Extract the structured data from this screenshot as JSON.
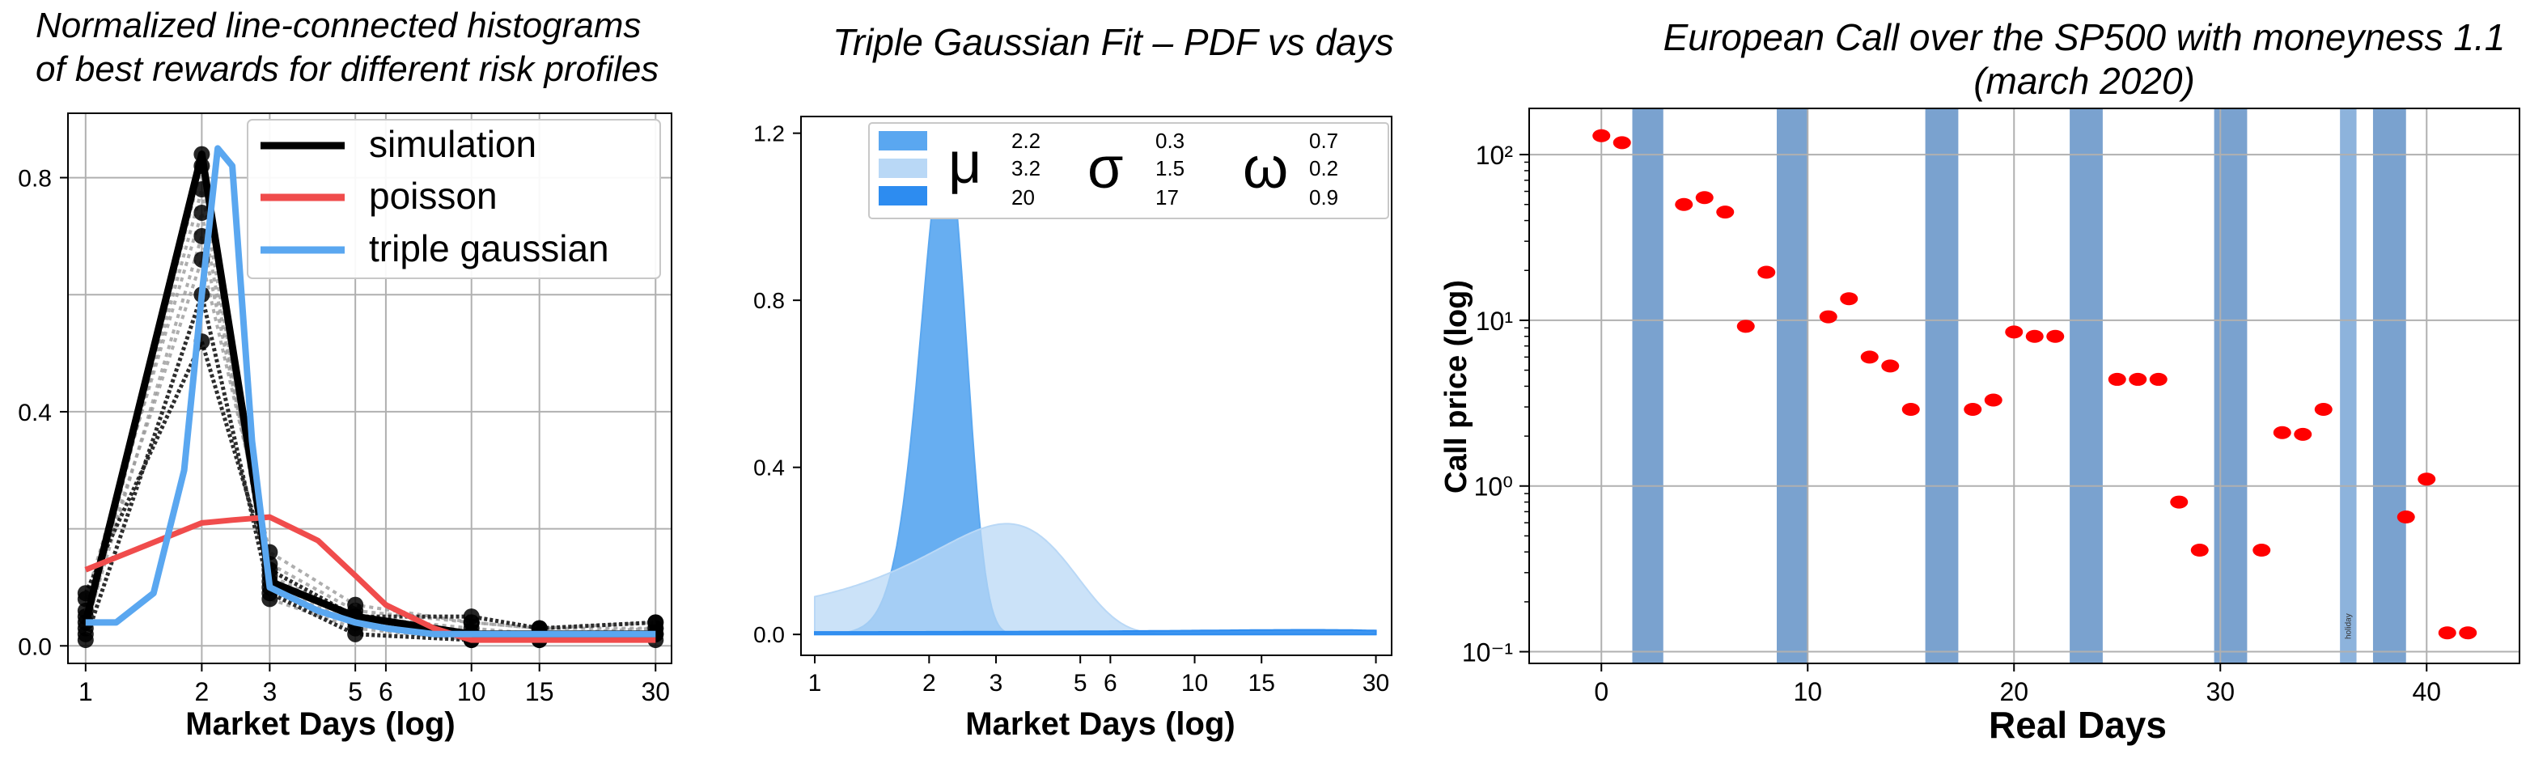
{
  "chart_data": [
    {
      "type": "line",
      "title": [
        "Normalized line-connected histograms",
        "of best rewards for different risk profiles"
      ],
      "xlabel": "Market  Days (log)",
      "ylabel": "",
      "xscale": "log",
      "xlim": [
        0.9,
        33
      ],
      "ylim": [
        -0.03,
        0.91
      ],
      "xticks": [
        1,
        2,
        3,
        5,
        6,
        10,
        15,
        30
      ],
      "xtick_labels": [
        "1",
        "2",
        "3",
        "5",
        "6",
        "10",
        "15",
        "30"
      ],
      "yticks": [
        0.0,
        0.4,
        0.8
      ],
      "ytick_labels": [
        "0.0",
        "0.4",
        "0.8"
      ],
      "grid": true,
      "legend": "top-right",
      "colors": {
        "simulation": "#000000",
        "poisson": "#f04c4c",
        "triple_gaussian": "#5aa7f0",
        "grey": "#9a9a9a"
      },
      "series": [
        {
          "name": "simulation",
          "x": [
            1,
            2,
            3,
            5,
            10,
            15,
            30
          ],
          "y": [
            0.04,
            0.84,
            0.11,
            0.05,
            0.02,
            0.02,
            0.02
          ]
        },
        {
          "name": "poisson",
          "x": [
            1,
            2,
            2.4,
            3,
            4,
            5,
            6,
            8,
            10,
            15,
            30
          ],
          "y": [
            0.13,
            0.21,
            0.215,
            0.22,
            0.18,
            0.12,
            0.07,
            0.03,
            0.01,
            0.01,
            0.01
          ]
        },
        {
          "name": "triple gaussian",
          "x": [
            1,
            1.2,
            1.5,
            1.8,
            2.0,
            2.2,
            2.4,
            2.7,
            3.0,
            4,
            5,
            6,
            8,
            10,
            15,
            30
          ],
          "y": [
            0.04,
            0.04,
            0.09,
            0.3,
            0.6,
            0.85,
            0.82,
            0.35,
            0.1,
            0.06,
            0.04,
            0.03,
            0.02,
            0.02,
            0.02,
            0.02
          ]
        }
      ],
      "simulation_bundle": [
        {
          "x": [
            1,
            2,
            3,
            5,
            10,
            15,
            30
          ],
          "y": [
            0.02,
            0.82,
            0.08,
            0.03,
            0.01,
            0.01,
            0.02
          ]
        },
        {
          "x": [
            1,
            2,
            3,
            5,
            10,
            15,
            30
          ],
          "y": [
            0.05,
            0.78,
            0.1,
            0.04,
            0.02,
            0.02,
            0.02
          ]
        },
        {
          "x": [
            1,
            2,
            3,
            5,
            10,
            15,
            30
          ],
          "y": [
            0.08,
            0.74,
            0.12,
            0.05,
            0.03,
            0.02,
            0.03
          ]
        },
        {
          "x": [
            1,
            2,
            3,
            5,
            10,
            15,
            30
          ],
          "y": [
            0.03,
            0.7,
            0.14,
            0.06,
            0.04,
            0.03,
            0.03
          ]
        },
        {
          "x": [
            1,
            2,
            3,
            5,
            10,
            15,
            30
          ],
          "y": [
            0.06,
            0.66,
            0.16,
            0.07,
            0.04,
            0.03,
            0.04
          ]
        },
        {
          "x": [
            1,
            2,
            3,
            5,
            10,
            15,
            30
          ],
          "y": [
            0.01,
            0.6,
            0.09,
            0.02,
            0.01,
            0.01,
            0.01
          ]
        },
        {
          "x": [
            1,
            2,
            3,
            5,
            10,
            15,
            30
          ],
          "y": [
            0.09,
            0.52,
            0.13,
            0.05,
            0.05,
            0.03,
            0.04
          ]
        },
        {
          "x": [
            1,
            2,
            3,
            5,
            10,
            15,
            30
          ],
          "y": [
            0.04,
            0.84,
            0.11,
            0.05,
            0.02,
            0.02,
            0.02
          ]
        }
      ]
    },
    {
      "type": "area",
      "title": "Triple Gaussian Fit – PDF vs days",
      "xlabel": "Market  Days (log)",
      "ylabel": "",
      "xscale": "log",
      "xlim": [
        0.92,
        33
      ],
      "ylim": [
        -0.05,
        1.24
      ],
      "xticks": [
        1,
        2,
        3,
        5,
        6,
        10,
        15,
        30
      ],
      "xtick_labels": [
        "1",
        "2",
        "3",
        "5",
        "6",
        "10",
        "15",
        "30"
      ],
      "yticks": [
        0.0,
        0.4,
        0.8,
        1.2
      ],
      "ytick_labels": [
        "0.0",
        "0.4",
        "0.8",
        "1.2"
      ],
      "grid": false,
      "legend": "top",
      "legend_headers": [
        "μ",
        "σ",
        "ω"
      ],
      "legend_rows": [
        {
          "mu": "2.2",
          "sigma": "0.3",
          "omega": "0.7",
          "color": "#5aa7f0"
        },
        {
          "mu": "3.2",
          "sigma": "1.5",
          "omega": "0.2",
          "color": "#b9d8f6"
        },
        {
          "mu": "20",
          "sigma": "17",
          "omega": "0.9",
          "color": "#2d8cf0"
        }
      ],
      "series": [
        {
          "name": "",
          "mu": 2.2,
          "sigma": 0.3,
          "peak": 1.18,
          "color": "#5aa7f0"
        },
        {
          "name": "",
          "mu": 3.2,
          "sigma": 1.5,
          "peak": 0.265,
          "color": "#b9d8f6"
        },
        {
          "name": "",
          "mu": 20,
          "sigma": 17,
          "peak": 0.011,
          "color": "#2d8cf0"
        }
      ]
    },
    {
      "type": "scatter",
      "title": [
        "European Call over the SP500 with moneyness 1.1",
        "(march 2020)"
      ],
      "xlabel": "Real Days",
      "ylabel": "Call price (log)",
      "yscale": "log",
      "xlim": [
        -3.5,
        44.5
      ],
      "ylim": [
        0.085,
        190
      ],
      "xticks": [
        0,
        10,
        20,
        30,
        40
      ],
      "xtick_labels": [
        "0",
        "10",
        "20",
        "30",
        "40"
      ],
      "ytick_labels": [
        "10⁻¹",
        "10⁰",
        "10¹",
        "10²"
      ],
      "grid": true,
      "marker_color": "#ff0000",
      "band_color": "#7aa2cf",
      "holiday_band_color": "#8db3dc",
      "holiday_label": "holiday",
      "bands": [
        [
          1.5,
          3
        ],
        [
          8.5,
          10
        ],
        [
          15.7,
          17.3
        ],
        [
          22.7,
          24.3
        ],
        [
          29.7,
          31.3
        ],
        [
          37.4,
          39
        ]
      ],
      "holiday_band": [
        35.8,
        36.6
      ],
      "points": [
        [
          0,
          130
        ],
        [
          1,
          118
        ],
        [
          4,
          50
        ],
        [
          5,
          55
        ],
        [
          6,
          45
        ],
        [
          7,
          9.2
        ],
        [
          8,
          19.5
        ],
        [
          11,
          10.5
        ],
        [
          12,
          13.5
        ],
        [
          13,
          6
        ],
        [
          14,
          5.3
        ],
        [
          15,
          2.9
        ],
        [
          18,
          2.9
        ],
        [
          19,
          3.3
        ],
        [
          20,
          8.5
        ],
        [
          21,
          8
        ],
        [
          22,
          8
        ],
        [
          25,
          4.4
        ],
        [
          26,
          4.4
        ],
        [
          27,
          4.4
        ],
        [
          28,
          0.8
        ],
        [
          29,
          0.41
        ],
        [
          32,
          0.41
        ],
        [
          33,
          2.1
        ],
        [
          34,
          2.05
        ],
        [
          35,
          2.9
        ],
        [
          39,
          0.65
        ],
        [
          40,
          1.1
        ],
        [
          41,
          0.13
        ],
        [
          42,
          0.13
        ]
      ]
    }
  ]
}
